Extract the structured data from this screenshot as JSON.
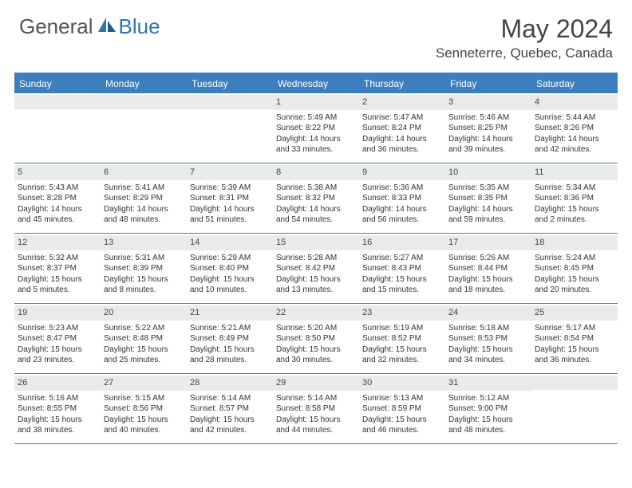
{
  "brand": {
    "part1": "General",
    "part2": "Blue"
  },
  "title": "May 2024",
  "location": "Senneterre, Quebec, Canada",
  "colors": {
    "header_bg": "#3b7fbf",
    "header_text": "#ffffff",
    "daynum_bg": "#eaeaea",
    "rule": "#3b7fbf",
    "body_text": "#333333",
    "title_text": "#444444",
    "brand_gray": "#555555",
    "brand_blue": "#2e74b5",
    "page_bg": "#ffffff"
  },
  "typography": {
    "month_fontsize": 32,
    "location_fontsize": 17,
    "dayhead_fontsize": 12,
    "cell_fontsize": 10,
    "brand_fontsize": 26
  },
  "daynames": [
    "Sunday",
    "Monday",
    "Tuesday",
    "Wednesday",
    "Thursday",
    "Friday",
    "Saturday"
  ],
  "weeks": [
    [
      {
        "day": ""
      },
      {
        "day": ""
      },
      {
        "day": ""
      },
      {
        "day": "1",
        "sunrise": "Sunrise: 5:49 AM",
        "sunset": "Sunset: 8:22 PM",
        "dl1": "Daylight: 14 hours",
        "dl2": "and 33 minutes."
      },
      {
        "day": "2",
        "sunrise": "Sunrise: 5:47 AM",
        "sunset": "Sunset: 8:24 PM",
        "dl1": "Daylight: 14 hours",
        "dl2": "and 36 minutes."
      },
      {
        "day": "3",
        "sunrise": "Sunrise: 5:46 AM",
        "sunset": "Sunset: 8:25 PM",
        "dl1": "Daylight: 14 hours",
        "dl2": "and 39 minutes."
      },
      {
        "day": "4",
        "sunrise": "Sunrise: 5:44 AM",
        "sunset": "Sunset: 8:26 PM",
        "dl1": "Daylight: 14 hours",
        "dl2": "and 42 minutes."
      }
    ],
    [
      {
        "day": "5",
        "sunrise": "Sunrise: 5:43 AM",
        "sunset": "Sunset: 8:28 PM",
        "dl1": "Daylight: 14 hours",
        "dl2": "and 45 minutes."
      },
      {
        "day": "6",
        "sunrise": "Sunrise: 5:41 AM",
        "sunset": "Sunset: 8:29 PM",
        "dl1": "Daylight: 14 hours",
        "dl2": "and 48 minutes."
      },
      {
        "day": "7",
        "sunrise": "Sunrise: 5:39 AM",
        "sunset": "Sunset: 8:31 PM",
        "dl1": "Daylight: 14 hours",
        "dl2": "and 51 minutes."
      },
      {
        "day": "8",
        "sunrise": "Sunrise: 5:38 AM",
        "sunset": "Sunset: 8:32 PM",
        "dl1": "Daylight: 14 hours",
        "dl2": "and 54 minutes."
      },
      {
        "day": "9",
        "sunrise": "Sunrise: 5:36 AM",
        "sunset": "Sunset: 8:33 PM",
        "dl1": "Daylight: 14 hours",
        "dl2": "and 56 minutes."
      },
      {
        "day": "10",
        "sunrise": "Sunrise: 5:35 AM",
        "sunset": "Sunset: 8:35 PM",
        "dl1": "Daylight: 14 hours",
        "dl2": "and 59 minutes."
      },
      {
        "day": "11",
        "sunrise": "Sunrise: 5:34 AM",
        "sunset": "Sunset: 8:36 PM",
        "dl1": "Daylight: 15 hours",
        "dl2": "and 2 minutes."
      }
    ],
    [
      {
        "day": "12",
        "sunrise": "Sunrise: 5:32 AM",
        "sunset": "Sunset: 8:37 PM",
        "dl1": "Daylight: 15 hours",
        "dl2": "and 5 minutes."
      },
      {
        "day": "13",
        "sunrise": "Sunrise: 5:31 AM",
        "sunset": "Sunset: 8:39 PM",
        "dl1": "Daylight: 15 hours",
        "dl2": "and 8 minutes."
      },
      {
        "day": "14",
        "sunrise": "Sunrise: 5:29 AM",
        "sunset": "Sunset: 8:40 PM",
        "dl1": "Daylight: 15 hours",
        "dl2": "and 10 minutes."
      },
      {
        "day": "15",
        "sunrise": "Sunrise: 5:28 AM",
        "sunset": "Sunset: 8:42 PM",
        "dl1": "Daylight: 15 hours",
        "dl2": "and 13 minutes."
      },
      {
        "day": "16",
        "sunrise": "Sunrise: 5:27 AM",
        "sunset": "Sunset: 8:43 PM",
        "dl1": "Daylight: 15 hours",
        "dl2": "and 15 minutes."
      },
      {
        "day": "17",
        "sunrise": "Sunrise: 5:26 AM",
        "sunset": "Sunset: 8:44 PM",
        "dl1": "Daylight: 15 hours",
        "dl2": "and 18 minutes."
      },
      {
        "day": "18",
        "sunrise": "Sunrise: 5:24 AM",
        "sunset": "Sunset: 8:45 PM",
        "dl1": "Daylight: 15 hours",
        "dl2": "and 20 minutes."
      }
    ],
    [
      {
        "day": "19",
        "sunrise": "Sunrise: 5:23 AM",
        "sunset": "Sunset: 8:47 PM",
        "dl1": "Daylight: 15 hours",
        "dl2": "and 23 minutes."
      },
      {
        "day": "20",
        "sunrise": "Sunrise: 5:22 AM",
        "sunset": "Sunset: 8:48 PM",
        "dl1": "Daylight: 15 hours",
        "dl2": "and 25 minutes."
      },
      {
        "day": "21",
        "sunrise": "Sunrise: 5:21 AM",
        "sunset": "Sunset: 8:49 PM",
        "dl1": "Daylight: 15 hours",
        "dl2": "and 28 minutes."
      },
      {
        "day": "22",
        "sunrise": "Sunrise: 5:20 AM",
        "sunset": "Sunset: 8:50 PM",
        "dl1": "Daylight: 15 hours",
        "dl2": "and 30 minutes."
      },
      {
        "day": "23",
        "sunrise": "Sunrise: 5:19 AM",
        "sunset": "Sunset: 8:52 PM",
        "dl1": "Daylight: 15 hours",
        "dl2": "and 32 minutes."
      },
      {
        "day": "24",
        "sunrise": "Sunrise: 5:18 AM",
        "sunset": "Sunset: 8:53 PM",
        "dl1": "Daylight: 15 hours",
        "dl2": "and 34 minutes."
      },
      {
        "day": "25",
        "sunrise": "Sunrise: 5:17 AM",
        "sunset": "Sunset: 8:54 PM",
        "dl1": "Daylight: 15 hours",
        "dl2": "and 36 minutes."
      }
    ],
    [
      {
        "day": "26",
        "sunrise": "Sunrise: 5:16 AM",
        "sunset": "Sunset: 8:55 PM",
        "dl1": "Daylight: 15 hours",
        "dl2": "and 38 minutes."
      },
      {
        "day": "27",
        "sunrise": "Sunrise: 5:15 AM",
        "sunset": "Sunset: 8:56 PM",
        "dl1": "Daylight: 15 hours",
        "dl2": "and 40 minutes."
      },
      {
        "day": "28",
        "sunrise": "Sunrise: 5:14 AM",
        "sunset": "Sunset: 8:57 PM",
        "dl1": "Daylight: 15 hours",
        "dl2": "and 42 minutes."
      },
      {
        "day": "29",
        "sunrise": "Sunrise: 5:14 AM",
        "sunset": "Sunset: 8:58 PM",
        "dl1": "Daylight: 15 hours",
        "dl2": "and 44 minutes."
      },
      {
        "day": "30",
        "sunrise": "Sunrise: 5:13 AM",
        "sunset": "Sunset: 8:59 PM",
        "dl1": "Daylight: 15 hours",
        "dl2": "and 46 minutes."
      },
      {
        "day": "31",
        "sunrise": "Sunrise: 5:12 AM",
        "sunset": "Sunset: 9:00 PM",
        "dl1": "Daylight: 15 hours",
        "dl2": "and 48 minutes."
      },
      {
        "day": ""
      }
    ]
  ]
}
